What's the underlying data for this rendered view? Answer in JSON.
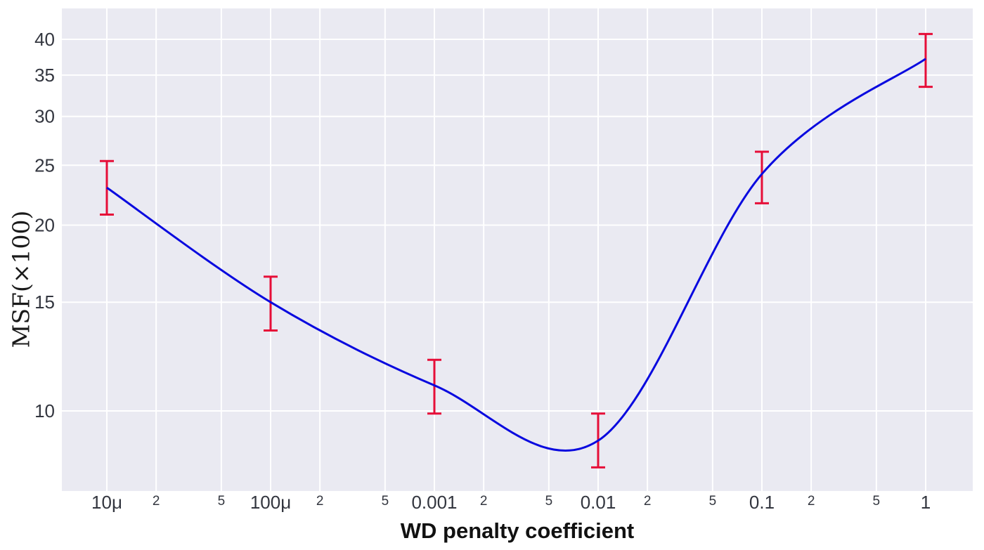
{
  "chart_data": {
    "type": "line",
    "title": "",
    "xlabel": "WD penalty coefficient",
    "ylabel": "MSF(×100)",
    "x_scale": "log",
    "y_scale": "log",
    "line_shape": "spline",
    "grid": true,
    "legend": false,
    "series": [
      {
        "name": "MSF",
        "x": [
          1e-05,
          0.0001,
          0.001,
          0.01,
          0.1,
          1
        ],
        "y": [
          23.0,
          15.0,
          11.0,
          8.95,
          24.2,
          37.2
        ],
        "y_upper": [
          25.4,
          16.5,
          12.1,
          9.9,
          26.3,
          40.8
        ],
        "y_lower": [
          20.8,
          13.5,
          9.9,
          8.1,
          21.7,
          33.5
        ]
      }
    ],
    "x_major_ticks": [
      {
        "value": 1e-05,
        "label": "10μ"
      },
      {
        "value": 0.0001,
        "label": "100μ"
      },
      {
        "value": 0.001,
        "label": "0.001"
      },
      {
        "value": 0.01,
        "label": "0.01"
      },
      {
        "value": 0.1,
        "label": "0.1"
      },
      {
        "value": 1,
        "label": "1"
      }
    ],
    "x_minor_ticks": [
      {
        "value": 2e-05,
        "label": "2"
      },
      {
        "value": 5e-05,
        "label": "5"
      },
      {
        "value": 0.0002,
        "label": "2"
      },
      {
        "value": 0.0005,
        "label": "5"
      },
      {
        "value": 0.002,
        "label": "2"
      },
      {
        "value": 0.005,
        "label": "5"
      },
      {
        "value": 0.02,
        "label": "2"
      },
      {
        "value": 0.05,
        "label": "5"
      },
      {
        "value": 0.2,
        "label": "2"
      },
      {
        "value": 0.5,
        "label": "5"
      }
    ],
    "y_ticks": [
      {
        "value": 10,
        "label": "10"
      },
      {
        "value": 15,
        "label": "15"
      },
      {
        "value": 20,
        "label": "20"
      },
      {
        "value": 25,
        "label": "25"
      },
      {
        "value": 30,
        "label": "30"
      },
      {
        "value": 35,
        "label": "35"
      },
      {
        "value": 40,
        "label": "40"
      }
    ],
    "x_log_range": [
      -5.2747,
      0.2876
    ],
    "y_log_range": [
      0.8702,
      1.6521
    ],
    "colors": {
      "line": "#0909df",
      "error": "#e60e38",
      "plot_bg": "#eaeaf2",
      "grid": "#ffffff",
      "tick_text": "#33363f",
      "axis_title": "#111111"
    }
  }
}
